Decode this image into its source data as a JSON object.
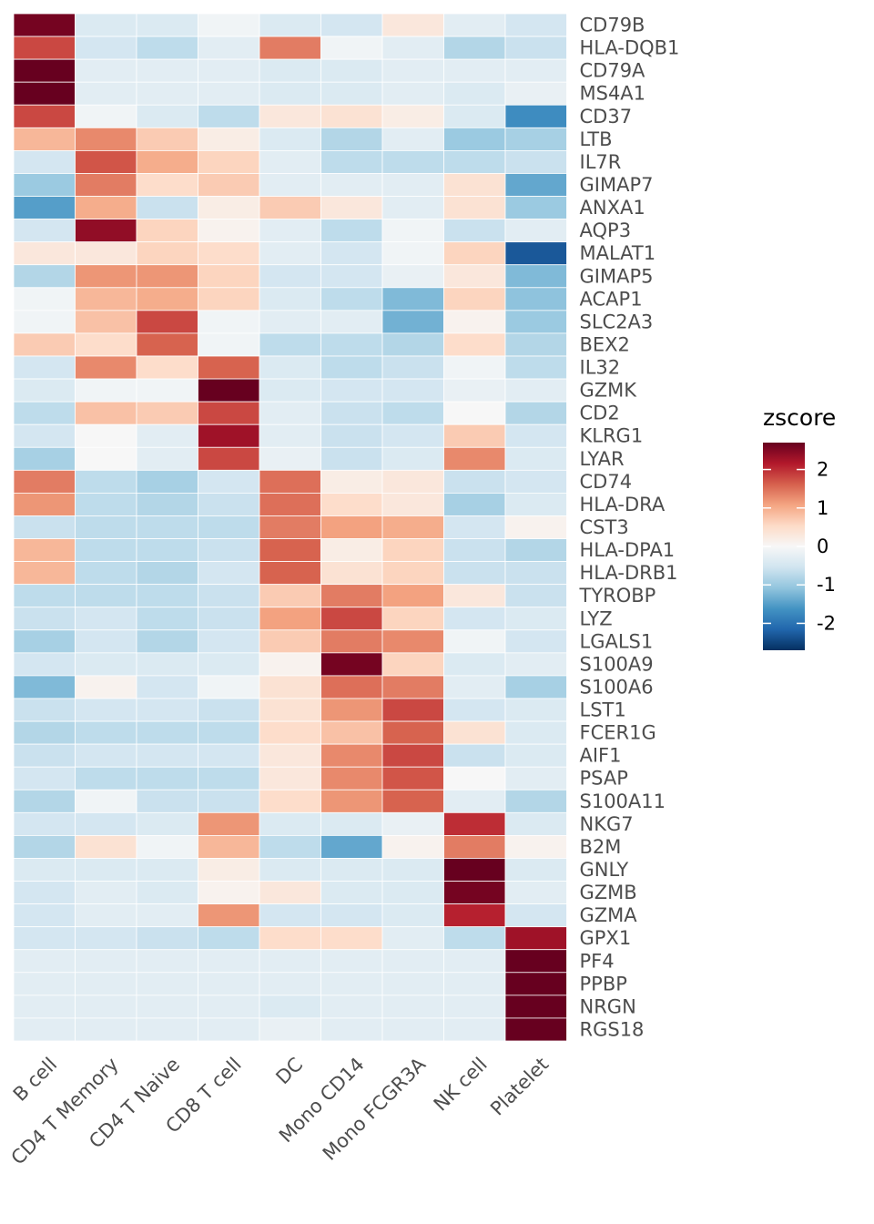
{
  "chart_data": {
    "type": "heatmap",
    "title": "",
    "xlabel": "",
    "ylabel": "",
    "columns": [
      "B cell",
      "CD4 T Memory",
      "CD4 T Naive",
      "CD8 T cell",
      "DC",
      "Mono CD14",
      "Mono FCGR3A",
      "NK cell",
      "Platelet"
    ],
    "rows": [
      "CD79B",
      "HLA-DQB1",
      "CD79A",
      "MS4A1",
      "CD37",
      "LTB",
      "IL7R",
      "GIMAP7",
      "ANXA1",
      "AQP3",
      "MALAT1",
      "GIMAP5",
      "ACAP1",
      "SLC2A3",
      "BEX2",
      "IL32",
      "GZMK",
      "CD2",
      "KLRG1",
      "LYAR",
      "CD74",
      "HLA-DRA",
      "CST3",
      "HLA-DPA1",
      "HLA-DRB1",
      "TYROBP",
      "LYZ",
      "LGALS1",
      "S100A9",
      "S100A6",
      "LST1",
      "FCER1G",
      "AIF1",
      "PSAP",
      "S100A11",
      "NKG7",
      "B2M",
      "GNLY",
      "GZMB",
      "GZMA",
      "GPX1",
      "PF4",
      "PPBP",
      "NRGN",
      "RGS18"
    ],
    "values": [
      [
        2.6,
        -0.4,
        -0.4,
        -0.1,
        -0.4,
        -0.5,
        0.3,
        -0.3,
        -0.5
      ],
      [
        1.8,
        -0.5,
        -0.7,
        -0.3,
        1.4,
        -0.1,
        -0.3,
        -0.8,
        -0.6
      ],
      [
        2.7,
        -0.3,
        -0.3,
        -0.3,
        -0.4,
        -0.4,
        -0.3,
        -0.3,
        -0.3
      ],
      [
        2.7,
        -0.3,
        -0.3,
        -0.3,
        -0.4,
        -0.4,
        -0.3,
        -0.4,
        -0.2
      ],
      [
        1.8,
        -0.1,
        -0.4,
        -0.7,
        0.3,
        0.4,
        0.2,
        -0.4,
        -1.7
      ],
      [
        0.9,
        1.3,
        0.7,
        0.2,
        -0.4,
        -0.8,
        -0.3,
        -1.0,
        -0.9
      ],
      [
        -0.5,
        1.7,
        1.0,
        0.6,
        -0.3,
        -0.7,
        -0.7,
        -0.7,
        -0.6
      ],
      [
        -1.0,
        1.4,
        0.5,
        0.7,
        -0.3,
        -0.3,
        -0.3,
        0.4,
        -1.4
      ],
      [
        -1.5,
        1.0,
        -0.6,
        0.2,
        0.7,
        0.3,
        -0.3,
        0.4,
        -1.0
      ],
      [
        -0.5,
        2.4,
        0.6,
        0.1,
        -0.3,
        -0.7,
        -0.1,
        -0.6,
        -0.3
      ],
      [
        0.3,
        0.3,
        0.6,
        0.5,
        -0.3,
        -0.5,
        -0.1,
        0.6,
        -2.3
      ],
      [
        -0.8,
        1.2,
        1.2,
        0.6,
        -0.5,
        -0.5,
        -0.2,
        0.3,
        -1.2
      ],
      [
        -0.1,
        0.9,
        1.0,
        0.6,
        -0.4,
        -0.7,
        -1.2,
        0.6,
        -1.1
      ],
      [
        -0.1,
        0.8,
        1.8,
        -0.1,
        -0.3,
        -0.3,
        -1.3,
        0.1,
        -1.0
      ],
      [
        0.7,
        0.5,
        1.6,
        -0.1,
        -0.7,
        -0.7,
        -0.8,
        0.5,
        -0.8
      ],
      [
        -0.5,
        1.3,
        0.5,
        1.6,
        -0.4,
        -0.7,
        -0.6,
        -0.1,
        -0.7
      ],
      [
        -0.4,
        -0.1,
        -0.1,
        2.7,
        -0.4,
        -0.5,
        -0.5,
        -0.2,
        -0.3
      ],
      [
        -0.7,
        0.8,
        0.7,
        1.8,
        -0.3,
        -0.6,
        -0.7,
        0.0,
        -0.8
      ],
      [
        -0.5,
        0.0,
        -0.3,
        2.3,
        -0.3,
        -0.6,
        -0.5,
        0.7,
        -0.5
      ],
      [
        -0.9,
        0.0,
        -0.3,
        1.8,
        -0.2,
        -0.6,
        -0.4,
        1.3,
        -0.4
      ],
      [
        1.4,
        -0.7,
        -0.9,
        -0.5,
        1.5,
        0.2,
        0.3,
        -0.6,
        -0.5
      ],
      [
        1.2,
        -0.7,
        -0.8,
        -0.6,
        1.5,
        0.5,
        0.3,
        -0.9,
        -0.4
      ],
      [
        -0.6,
        -0.7,
        -0.7,
        -0.7,
        1.4,
        1.1,
        1.0,
        -0.5,
        0.1
      ],
      [
        0.9,
        -0.7,
        -0.7,
        -0.6,
        1.6,
        0.2,
        0.6,
        -0.6,
        -0.8
      ],
      [
        0.9,
        -0.7,
        -0.8,
        -0.5,
        1.6,
        0.4,
        0.6,
        -0.6,
        -0.6
      ],
      [
        -0.7,
        -0.7,
        -0.7,
        -0.6,
        0.7,
        1.4,
        1.1,
        0.3,
        -0.6
      ],
      [
        -0.6,
        -0.5,
        -0.7,
        -0.6,
        1.1,
        1.8,
        0.6,
        -0.5,
        -0.4
      ],
      [
        -0.9,
        -0.5,
        -0.8,
        -0.5,
        0.7,
        1.4,
        1.3,
        -0.1,
        -0.5
      ],
      [
        -0.5,
        -0.4,
        -0.4,
        -0.4,
        0.1,
        2.6,
        0.6,
        -0.4,
        -0.3
      ],
      [
        -1.2,
        0.1,
        -0.5,
        -0.1,
        0.4,
        1.5,
        1.4,
        -0.3,
        -0.9
      ],
      [
        -0.6,
        -0.5,
        -0.5,
        -0.6,
        0.4,
        1.2,
        1.8,
        -0.5,
        -0.4
      ],
      [
        -0.8,
        -0.7,
        -0.7,
        -0.7,
        0.5,
        0.8,
        1.6,
        0.4,
        -0.4
      ],
      [
        -0.6,
        -0.5,
        -0.5,
        -0.5,
        0.3,
        1.3,
        1.8,
        -0.6,
        -0.4
      ],
      [
        -0.5,
        -0.7,
        -0.7,
        -0.7,
        0.3,
        1.3,
        1.7,
        0.0,
        -0.3
      ],
      [
        -0.8,
        -0.1,
        -0.6,
        -0.6,
        0.5,
        1.2,
        1.6,
        -0.3,
        -0.8
      ],
      [
        -0.5,
        -0.5,
        -0.4,
        1.2,
        -0.4,
        -0.4,
        -0.2,
        2.0,
        -0.4
      ],
      [
        -0.8,
        0.4,
        -0.1,
        0.9,
        -0.7,
        -1.4,
        0.1,
        1.4,
        0.1
      ],
      [
        -0.4,
        -0.4,
        -0.4,
        0.2,
        -0.4,
        -0.4,
        -0.4,
        2.7,
        -0.4
      ],
      [
        -0.5,
        -0.3,
        -0.4,
        0.1,
        0.3,
        -0.4,
        -0.4,
        2.6,
        -0.3
      ],
      [
        -0.5,
        -0.3,
        -0.3,
        1.2,
        -0.5,
        -0.5,
        -0.4,
        2.1,
        -0.5
      ],
      [
        -0.5,
        -0.5,
        -0.6,
        -0.7,
        0.5,
        0.5,
        -0.3,
        -0.7,
        2.3
      ],
      [
        -0.3,
        -0.3,
        -0.3,
        -0.3,
        -0.3,
        -0.3,
        -0.3,
        -0.3,
        2.7
      ],
      [
        -0.3,
        -0.3,
        -0.3,
        -0.3,
        -0.3,
        -0.3,
        -0.3,
        -0.3,
        2.7
      ],
      [
        -0.3,
        -0.3,
        -0.3,
        -0.3,
        -0.4,
        -0.3,
        -0.3,
        -0.3,
        2.7
      ],
      [
        -0.3,
        -0.3,
        -0.3,
        -0.3,
        -0.2,
        -0.3,
        -0.3,
        -0.3,
        2.7
      ]
    ],
    "color_scale": {
      "name": "RdBu",
      "domain": [
        -2.7,
        2.7
      ],
      "stops": [
        "#053061",
        "#2166ac",
        "#4393c3",
        "#92c5de",
        "#d1e5f0",
        "#f7f7f7",
        "#fddbc7",
        "#f4a582",
        "#d6604d",
        "#b2182b",
        "#67001f"
      ]
    },
    "legend": {
      "title": "zscore",
      "ticks": [
        2,
        1,
        0,
        -1,
        -2
      ],
      "tick_labels": [
        "2",
        "1",
        "0",
        "-1",
        "-2"
      ],
      "placement": "right"
    },
    "grid": false
  }
}
